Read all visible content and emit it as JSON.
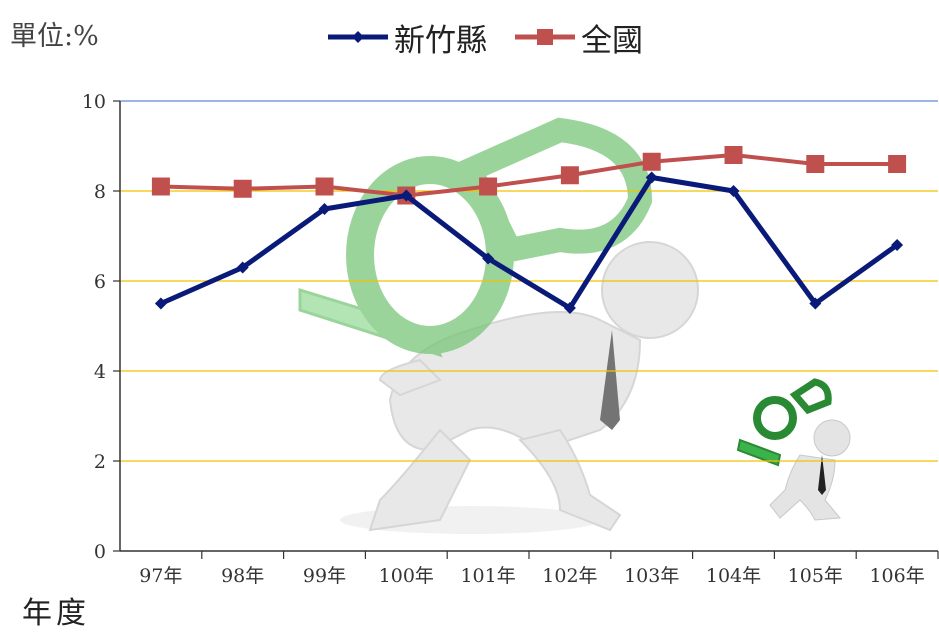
{
  "unit_label": "單位:%",
  "legend": [
    {
      "name": "新竹縣",
      "color": "#0a1a78",
      "marker": "diamond"
    },
    {
      "name": "全國",
      "color": "#c0504d",
      "marker": "square"
    }
  ],
  "chart_data": {
    "type": "line",
    "x": [
      "97年",
      "98年",
      "99年",
      "100年",
      "101年",
      "102年",
      "103年",
      "104年",
      "105年",
      "106年"
    ],
    "xlabel": "年度",
    "ylabel": "單位:%",
    "ylim": [
      0,
      10
    ],
    "yticks": [
      0,
      2,
      4,
      6,
      8,
      10
    ],
    "grid": true,
    "legend_position": "top",
    "series": [
      {
        "name": "新竹縣",
        "color": "#0a1a78",
        "values": [
          5.5,
          6.3,
          7.6,
          7.9,
          6.5,
          5.4,
          8.3,
          8.0,
          5.5,
          6.8
        ]
      },
      {
        "name": "全國",
        "color": "#c0504d",
        "values": [
          8.1,
          8.05,
          8.1,
          7.9,
          8.1,
          8.35,
          8.65,
          8.8,
          8.6,
          8.6
        ]
      }
    ]
  }
}
